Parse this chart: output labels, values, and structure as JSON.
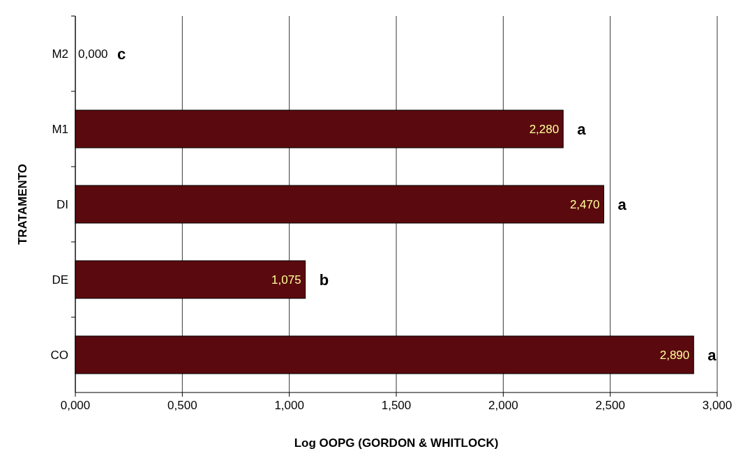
{
  "chart_data": {
    "type": "bar",
    "orientation": "horizontal",
    "categories": [
      "M2",
      "M1",
      "DI",
      "DE",
      "CO"
    ],
    "values": [
      0,
      2.28,
      2.47,
      1.075,
      2.89
    ],
    "value_labels": [
      "0,000",
      "2,280",
      "2,470",
      "1,075",
      "2,890"
    ],
    "color": "#5a0a0e",
    "xlim": [
      0,
      3
    ],
    "xticks": [
      {
        "value": 0,
        "label": "0,000"
      },
      {
        "value": 0.5,
        "label": "0,500"
      },
      {
        "value": 1,
        "label": "1,000"
      },
      {
        "value": 1.5,
        "label": "1,500"
      },
      {
        "value": 2,
        "label": "2,000"
      },
      {
        "value": 2.5,
        "label": "2,500"
      },
      {
        "value": 3,
        "label": "3,000"
      }
    ],
    "grid": "x",
    "xlabel": "Log OOPG (GORDON & WHITLOCK)",
    "ylabel": "TRATAMENTO",
    "annotations": [
      {
        "text": "c",
        "x": 0,
        "y": "M2"
      },
      {
        "text": "a",
        "x": 2.28,
        "y": "M1"
      },
      {
        "text": "a",
        "x": 2.47,
        "y": "DI"
      },
      {
        "text": "b",
        "x": 1.075,
        "y": "DE"
      },
      {
        "text": "a",
        "x": 2.89,
        "y": "CO"
      }
    ]
  }
}
